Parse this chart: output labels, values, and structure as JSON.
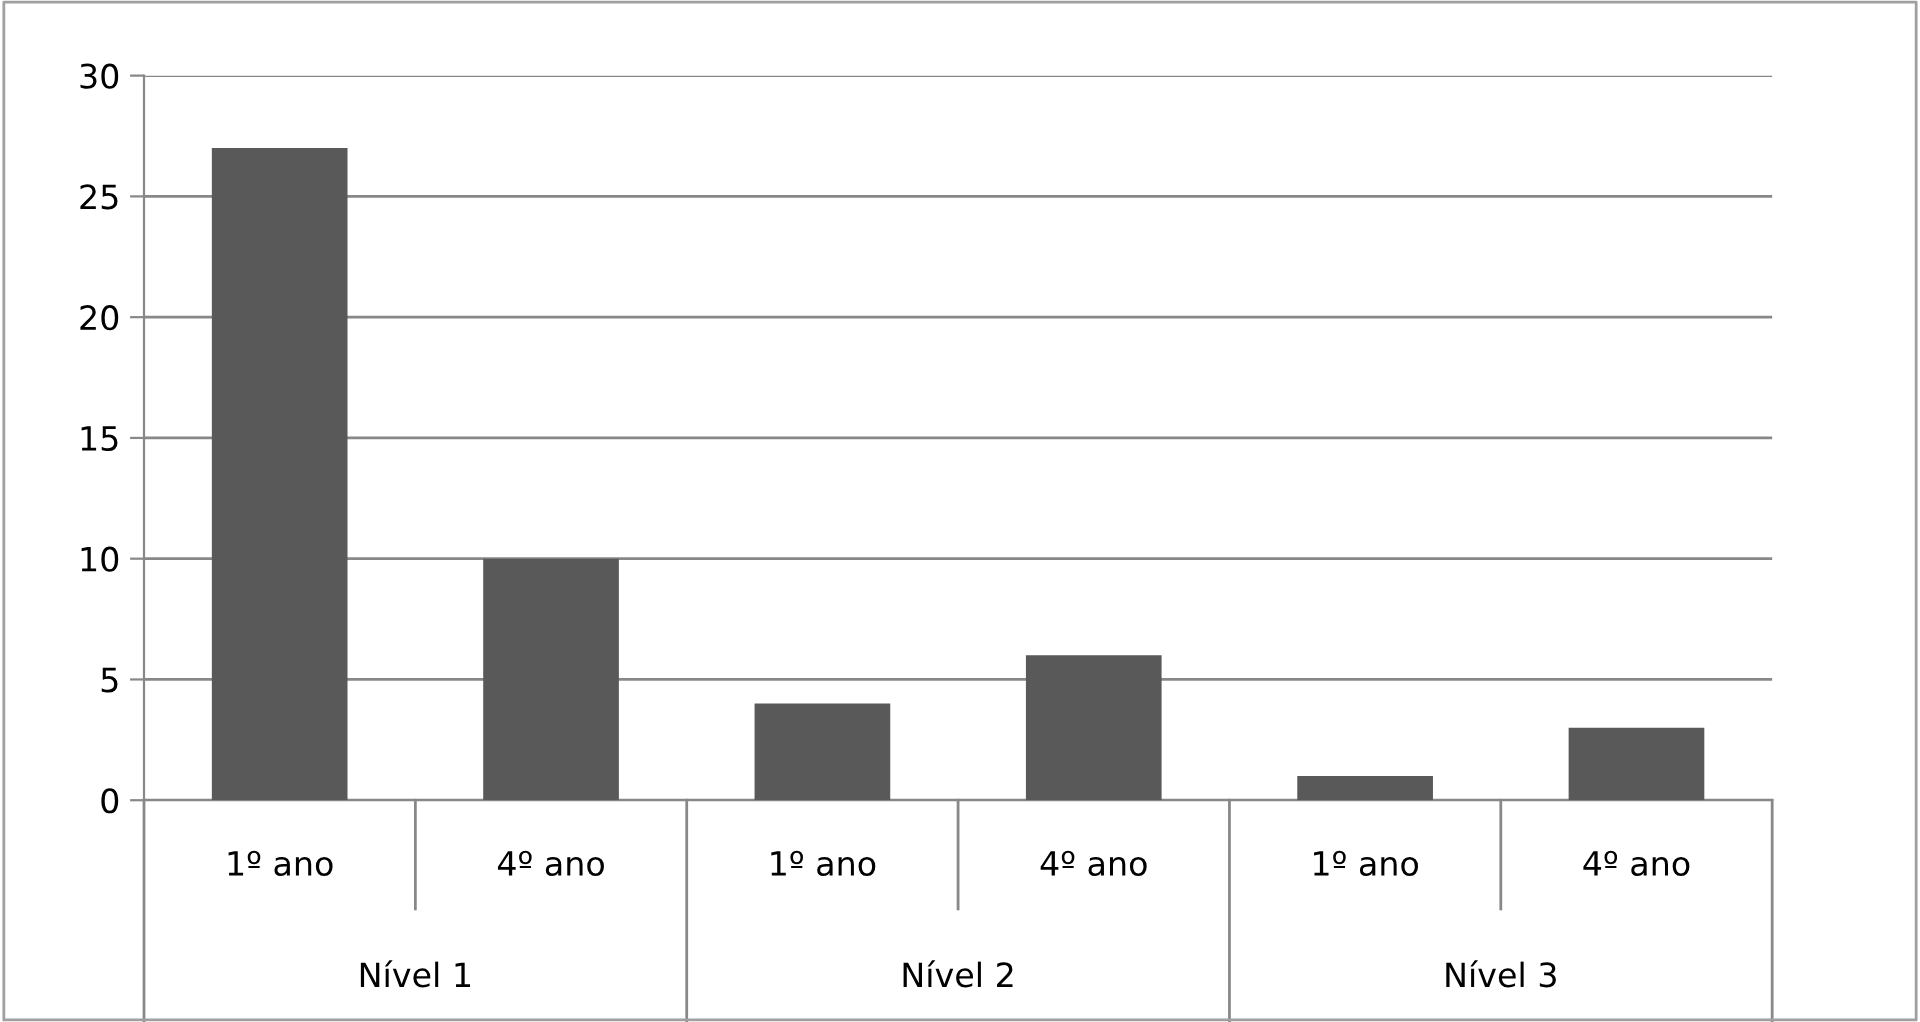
{
  "chart_data": {
    "type": "bar",
    "categories": [
      "1º ano",
      "4º ano",
      "1º ano",
      "4º ano",
      "1º ano",
      "4º ano"
    ],
    "values": [
      27,
      10,
      4,
      6,
      1,
      3
    ],
    "color": "#595959",
    "ylim": [
      0,
      30
    ],
    "yticks": [
      0,
      5,
      10,
      15,
      20,
      25,
      30
    ],
    "grid": "y",
    "legend": false,
    "annotations": [
      "Nível 1",
      "Nível 2",
      "Nível 3"
    ]
  }
}
